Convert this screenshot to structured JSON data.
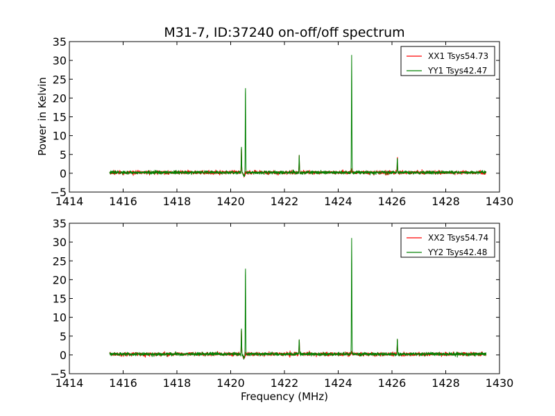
{
  "title": "M31-7, ID:37240 on-off/off spectrum",
  "colors": {
    "xx": "#ff0000",
    "yy": "#008000"
  },
  "chart_data": [
    {
      "type": "line",
      "title": "M31-7, ID:37240 on-off/off spectrum",
      "xlabel": "",
      "ylabel": "Power in Kelvin",
      "xlim": [
        1414,
        1430
      ],
      "ylim": [
        -5,
        35
      ],
      "xticks": [
        "1414",
        "1416",
        "1418",
        "1420",
        "1422",
        "1424",
        "1426",
        "1428",
        "1430"
      ],
      "yticks": [
        "−5",
        "0",
        "5",
        "10",
        "15",
        "20",
        "25",
        "30",
        "35"
      ],
      "legend_position": "top-right",
      "series": [
        {
          "name": "XX1 Tsys54.73",
          "color": "#ff0000",
          "x_range": [
            1415.5,
            1429.5
          ],
          "noise": 0.45,
          "baseline": 0.2,
          "peaks": [
            {
              "x": 1420.4,
              "y": 7.0
            },
            {
              "x": 1420.55,
              "y": 0.8
            },
            {
              "x": 1422.55,
              "y": 4.3
            },
            {
              "x": 1424.5,
              "y": 1.2
            },
            {
              "x": 1426.2,
              "y": 4.2
            }
          ]
        },
        {
          "name": "YY1 Tsys42.47",
          "color": "#008000",
          "x_range": [
            1415.5,
            1429.5
          ],
          "noise": 0.4,
          "baseline": 0.2,
          "peaks": [
            {
              "x": 1420.4,
              "y": 7.3
            },
            {
              "x": 1420.55,
              "y": 23.8
            },
            {
              "x": 1422.55,
              "y": 4.4
            },
            {
              "x": 1424.5,
              "y": 31.2
            },
            {
              "x": 1426.2,
              "y": 4.3
            }
          ]
        }
      ]
    },
    {
      "type": "line",
      "title": "",
      "xlabel": "Frequency (MHz)",
      "ylabel": "",
      "xlim": [
        1414,
        1430
      ],
      "ylim": [
        -5,
        35
      ],
      "xticks": [
        "1414",
        "1416",
        "1418",
        "1420",
        "1422",
        "1424",
        "1426",
        "1428",
        "1430"
      ],
      "yticks": [
        "−5",
        "0",
        "5",
        "10",
        "15",
        "20",
        "25",
        "30",
        "35"
      ],
      "legend_position": "top-right",
      "series": [
        {
          "name": "XX2 Tsys54.74",
          "color": "#ff0000",
          "x_range": [
            1415.5,
            1429.5
          ],
          "noise": 0.45,
          "baseline": 0.2,
          "peaks": [
            {
              "x": 1420.4,
              "y": 7.0
            },
            {
              "x": 1420.55,
              "y": 0.8
            },
            {
              "x": 1422.55,
              "y": 4.3
            },
            {
              "x": 1424.5,
              "y": 1.2
            },
            {
              "x": 1426.2,
              "y": 4.2
            }
          ]
        },
        {
          "name": "YY2 Tsys42.48",
          "color": "#008000",
          "x_range": [
            1415.5,
            1429.5
          ],
          "noise": 0.4,
          "baseline": 0.2,
          "peaks": [
            {
              "x": 1420.4,
              "y": 7.3
            },
            {
              "x": 1420.55,
              "y": 23.8
            },
            {
              "x": 1422.55,
              "y": 4.4
            },
            {
              "x": 1424.5,
              "y": 31.0
            },
            {
              "x": 1426.2,
              "y": 4.3
            }
          ]
        }
      ]
    }
  ]
}
